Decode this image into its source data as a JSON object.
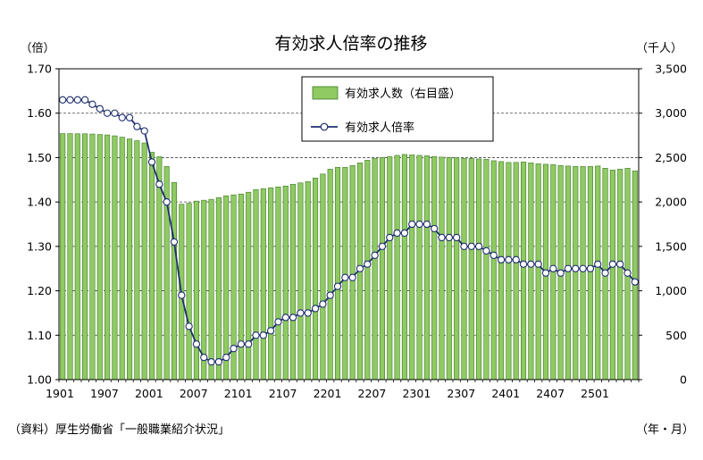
{
  "chart_data": {
    "type": "bar",
    "title": "有効求人倍率の推移",
    "left_axis_unit": "（倍）",
    "right_axis_unit": "（千人）",
    "x_unit": "（年・月）",
    "source": "（資料）厚生労働省「一般職業紹介状況」",
    "x_tick_labels": [
      "1901",
      "1907",
      "2001",
      "2007",
      "2101",
      "2107",
      "2201",
      "2207",
      "2301",
      "2307",
      "2401",
      "2407",
      "2501"
    ],
    "ylim_left": [
      1.0,
      1.7
    ],
    "yticks_left": [
      "1.00",
      "1.10",
      "1.20",
      "1.30",
      "1.40",
      "1.50",
      "1.60",
      "1.70"
    ],
    "ylim_right": [
      0,
      3500
    ],
    "yticks_right": [
      "0",
      "500",
      "1,000",
      "1,500",
      "2,000",
      "2,500",
      "3,000",
      "3,500"
    ],
    "grid": "horizontal dashed",
    "legend_position": "top-center",
    "colors": {
      "bar_fill": "#8fca62",
      "bar_edge": "#3f7a28",
      "line": "#1f2f6e",
      "marker_fill": "#ffffff"
    },
    "categories": [
      "1901",
      "1902",
      "1903",
      "1904",
      "1905",
      "1906",
      "1907",
      "1908",
      "1909",
      "1910",
      "1911",
      "1912",
      "2001",
      "2002",
      "2003",
      "2004",
      "2005",
      "2006",
      "2007",
      "2008",
      "2009",
      "2010",
      "2011",
      "2012",
      "2101",
      "2102",
      "2103",
      "2104",
      "2105",
      "2106",
      "2107",
      "2108",
      "2109",
      "2110",
      "2111",
      "2112",
      "2201",
      "2202",
      "2203",
      "2204",
      "2205",
      "2206",
      "2207",
      "2208",
      "2209",
      "2210",
      "2211",
      "2212",
      "2301",
      "2302",
      "2303",
      "2304",
      "2305",
      "2306",
      "2307",
      "2308",
      "2309",
      "2310",
      "2311",
      "2312",
      "2401",
      "2402",
      "2403",
      "2404",
      "2405",
      "2406",
      "2407",
      "2408",
      "2409",
      "2410",
      "2411",
      "2412",
      "2501",
      "2502",
      "2503",
      "2504",
      "2505",
      "2506"
    ],
    "series": [
      {
        "name": "有効求人数（右目盛）",
        "axis": "right",
        "kind": "bar",
        "values": [
          2770,
          2770,
          2768,
          2768,
          2765,
          2760,
          2755,
          2745,
          2730,
          2710,
          2690,
          2665,
          2560,
          2510,
          2400,
          2220,
          1975,
          1985,
          2010,
          2020,
          2030,
          2050,
          2070,
          2080,
          2090,
          2110,
          2140,
          2150,
          2160,
          2170,
          2180,
          2200,
          2215,
          2230,
          2270,
          2315,
          2370,
          2390,
          2390,
          2410,
          2440,
          2470,
          2490,
          2500,
          2510,
          2525,
          2535,
          2530,
          2525,
          2520,
          2512,
          2505,
          2500,
          2500,
          2490,
          2490,
          2485,
          2480,
          2465,
          2455,
          2445,
          2445,
          2450,
          2440,
          2430,
          2425,
          2420,
          2410,
          2405,
          2400,
          2400,
          2400,
          2405,
          2380,
          2360,
          2370,
          2380,
          2350
        ]
      },
      {
        "name": "有効求人倍率",
        "axis": "left",
        "kind": "line",
        "values": [
          1.63,
          1.63,
          1.63,
          1.63,
          1.62,
          1.61,
          1.6,
          1.6,
          1.59,
          1.59,
          1.57,
          1.56,
          1.49,
          1.44,
          1.4,
          1.31,
          1.19,
          1.12,
          1.08,
          1.05,
          1.04,
          1.04,
          1.05,
          1.07,
          1.08,
          1.08,
          1.1,
          1.1,
          1.11,
          1.13,
          1.14,
          1.14,
          1.15,
          1.15,
          1.16,
          1.17,
          1.19,
          1.21,
          1.23,
          1.23,
          1.25,
          1.26,
          1.28,
          1.3,
          1.32,
          1.33,
          1.33,
          1.35,
          1.35,
          1.35,
          1.34,
          1.32,
          1.32,
          1.32,
          1.3,
          1.3,
          1.3,
          1.29,
          1.28,
          1.27,
          1.27,
          1.27,
          1.26,
          1.26,
          1.26,
          1.24,
          1.25,
          1.24,
          1.25,
          1.25,
          1.25,
          1.25,
          1.26,
          1.24,
          1.26,
          1.26,
          1.24,
          1.22
        ]
      }
    ]
  }
}
